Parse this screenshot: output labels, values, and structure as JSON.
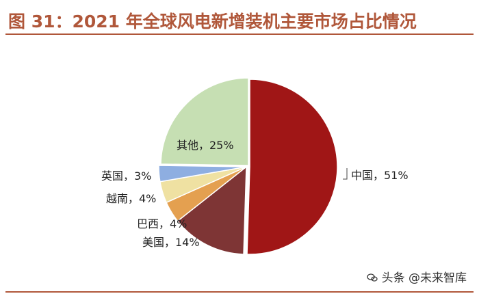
{
  "header": {
    "title": "图 31：2021 年全球风电新增装机主要市场占比情况"
  },
  "chart_data": {
    "type": "pie",
    "title": "图 31：2021 年全球风电新增装机主要市场占比情况",
    "slices": [
      {
        "name": "中国",
        "value": 51,
        "label": "中国，51%",
        "color": "#a01616"
      },
      {
        "name": "美国",
        "value": 14,
        "label": "美国，14%",
        "color": "#7e3535"
      },
      {
        "name": "巴西",
        "value": 4,
        "label": "巴西，4%",
        "color": "#e4a050"
      },
      {
        "name": "越南",
        "value": 4,
        "label": "越南，4%",
        "color": "#efe1a2"
      },
      {
        "name": "英国",
        "value": 3,
        "label": "英国，3%",
        "color": "#8eaee1"
      },
      {
        "name": "其他",
        "value": 25,
        "label": "其他，25%",
        "color": "#c6dfb3"
      }
    ]
  },
  "footer": {
    "watermark": "头条 @未来智库"
  },
  "colors": {
    "accent": "#b0573a"
  }
}
